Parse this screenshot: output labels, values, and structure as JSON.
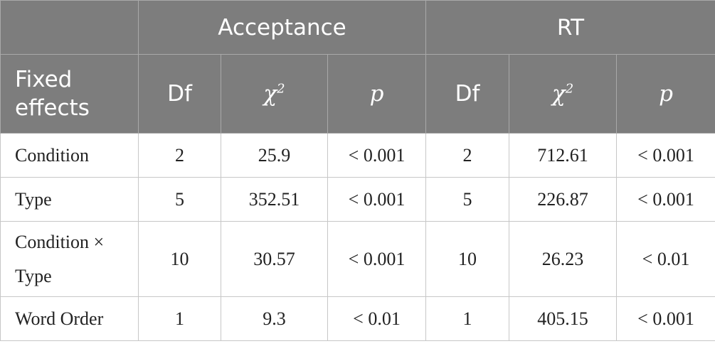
{
  "header": {
    "group_acceptance": "Acceptance",
    "group_rt": "RT",
    "fixed_effects": "Fixed effects",
    "df": "Df",
    "chi": "χ",
    "chi_sup": "2",
    "p": "p"
  },
  "rows": [
    {
      "effect": "Condition",
      "acc_df": "2",
      "acc_chi": "25.9",
      "acc_p": "< 0.001",
      "rt_df": "2",
      "rt_chi": "712.61",
      "rt_p": "< 0.001"
    },
    {
      "effect": "Type",
      "acc_df": "5",
      "acc_chi": "352.51",
      "acc_p": "< 0.001",
      "rt_df": "5",
      "rt_chi": "226.87",
      "rt_p": "< 0.001"
    },
    {
      "effect": "Condition × Type",
      "acc_df": "10",
      "acc_chi": "30.57",
      "acc_p": "< 0.001",
      "rt_df": "10",
      "rt_chi": "26.23",
      "rt_p": "< 0.01"
    },
    {
      "effect": "Word Order",
      "acc_df": "1",
      "acc_chi": "9.3",
      "acc_p": "< 0.01",
      "rt_df": "1",
      "rt_chi": "405.15",
      "rt_p": "< 0.001"
    }
  ]
}
